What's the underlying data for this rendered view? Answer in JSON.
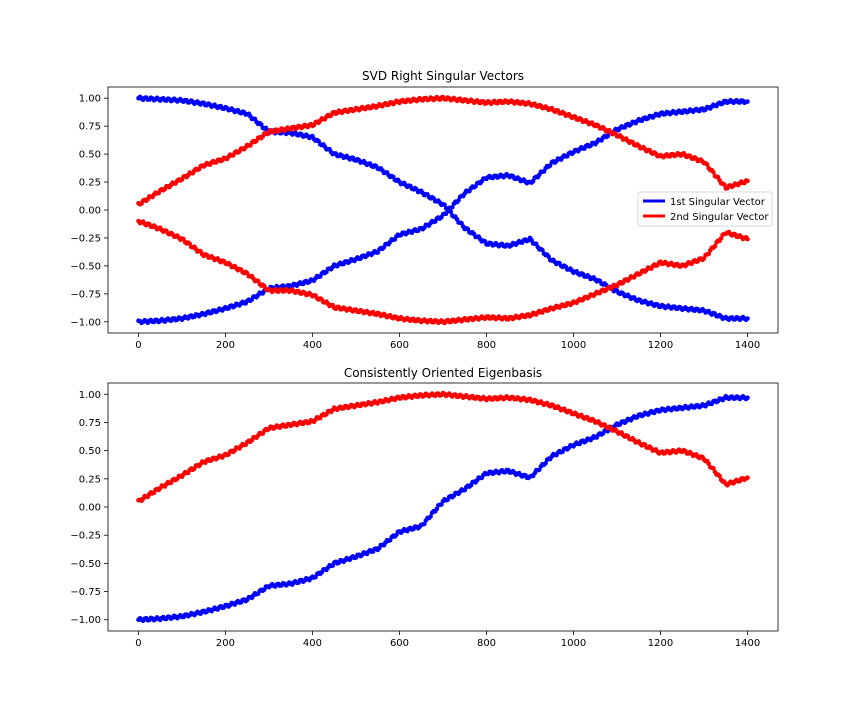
{
  "colors": {
    "series1": "#0000ff",
    "series2": "#ff0000",
    "axes": "#000000",
    "background": "#ffffff",
    "legend_border": "#cccccc"
  },
  "chart_data": [
    {
      "type": "scatter",
      "title": "SVD Right Singular Vectors",
      "xlabel": "",
      "ylabel": "",
      "xlim": [
        -70,
        1470
      ],
      "ylim": [
        -1.1,
        1.1
      ],
      "xticks": [
        0,
        200,
        400,
        600,
        800,
        1000,
        1200,
        1400
      ],
      "yticks": [
        -1.0,
        -0.75,
        -0.5,
        -0.25,
        0.0,
        0.25,
        0.5,
        0.75,
        1.0
      ],
      "xtick_labels": [
        "0",
        "200",
        "400",
        "600",
        "800",
        "1000",
        "1200",
        "1400"
      ],
      "ytick_labels": [
        "−1.00",
        "−0.75",
        "−0.50",
        "−0.25",
        "0.00",
        "0.25",
        "0.50",
        "0.75",
        "1.00"
      ],
      "grid": false,
      "legend": {
        "placement": "center-right",
        "entries": [
          "1st Singular Vector",
          "2nd Singular Vector"
        ]
      },
      "series": [
        {
          "name": "1st Singular Vector",
          "color": "#0000ff",
          "x": [
            0,
            50,
            100,
            150,
            200,
            250,
            300,
            350,
            400,
            450,
            500,
            550,
            600,
            650,
            700,
            750,
            800,
            850,
            900,
            950,
            1000,
            1050,
            1100,
            1150,
            1200,
            1250,
            1300,
            1350,
            1400
          ],
          "y": [
            1.0,
            0.99,
            0.98,
            0.95,
            0.91,
            0.86,
            0.7,
            0.69,
            0.65,
            0.5,
            0.45,
            0.38,
            0.25,
            0.16,
            0.05,
            -0.16,
            -0.3,
            -0.32,
            -0.26,
            -0.45,
            -0.55,
            -0.62,
            -0.73,
            -0.81,
            -0.86,
            -0.88,
            -0.9,
            -0.97,
            -0.97
          ]
        },
        {
          "name": "1st Singular Vector",
          "color": "#0000ff",
          "x": [
            0,
            50,
            100,
            150,
            200,
            250,
            300,
            350,
            400,
            450,
            500,
            550,
            600,
            650,
            700,
            750,
            800,
            850,
            900,
            950,
            1000,
            1050,
            1100,
            1150,
            1200,
            1250,
            1300,
            1350,
            1400
          ],
          "y": [
            -1.0,
            -0.99,
            -0.97,
            -0.93,
            -0.88,
            -0.82,
            -0.7,
            -0.68,
            -0.63,
            -0.5,
            -0.44,
            -0.37,
            -0.22,
            -0.17,
            -0.05,
            0.15,
            0.29,
            0.31,
            0.24,
            0.42,
            0.52,
            0.6,
            0.72,
            0.8,
            0.86,
            0.88,
            0.9,
            0.97,
            0.97
          ]
        },
        {
          "name": "2nd Singular Vector",
          "color": "#ff0000",
          "x": [
            0,
            50,
            100,
            150,
            200,
            250,
            300,
            350,
            400,
            450,
            500,
            550,
            600,
            650,
            700,
            750,
            800,
            850,
            900,
            950,
            1000,
            1050,
            1100,
            1150,
            1200,
            1250,
            1300,
            1350,
            1400
          ],
          "y": [
            0.05,
            0.17,
            0.28,
            0.4,
            0.46,
            0.57,
            0.7,
            0.73,
            0.76,
            0.87,
            0.9,
            0.93,
            0.97,
            0.99,
            1.0,
            0.98,
            0.96,
            0.97,
            0.95,
            0.9,
            0.83,
            0.76,
            0.67,
            0.57,
            0.48,
            0.5,
            0.43,
            0.2,
            0.26
          ]
        },
        {
          "name": "2nd Singular Vector",
          "color": "#ff0000",
          "x": [
            0,
            50,
            100,
            150,
            200,
            250,
            300,
            350,
            400,
            450,
            500,
            550,
            600,
            650,
            700,
            750,
            800,
            850,
            900,
            950,
            1000,
            1050,
            1100,
            1150,
            1200,
            1250,
            1300,
            1350,
            1400
          ],
          "y": [
            -0.1,
            -0.17,
            -0.26,
            -0.4,
            -0.47,
            -0.57,
            -0.72,
            -0.72,
            -0.76,
            -0.87,
            -0.9,
            -0.93,
            -0.97,
            -0.99,
            -1.0,
            -0.98,
            -0.96,
            -0.97,
            -0.94,
            -0.88,
            -0.83,
            -0.75,
            -0.67,
            -0.57,
            -0.47,
            -0.5,
            -0.43,
            -0.2,
            -0.26
          ]
        }
      ]
    },
    {
      "type": "scatter",
      "title": "Consistently Oriented Eigenbasis",
      "xlabel": "",
      "ylabel": "",
      "xlim": [
        -70,
        1470
      ],
      "ylim": [
        -1.1,
        1.1
      ],
      "xticks": [
        0,
        200,
        400,
        600,
        800,
        1000,
        1200,
        1400
      ],
      "yticks": [
        -1.0,
        -0.75,
        -0.5,
        -0.25,
        0.0,
        0.25,
        0.5,
        0.75,
        1.0
      ],
      "xtick_labels": [
        "0",
        "200",
        "400",
        "600",
        "800",
        "1000",
        "1200",
        "1400"
      ],
      "ytick_labels": [
        "−1.00",
        "−0.75",
        "−0.50",
        "−0.25",
        "0.00",
        "0.25",
        "0.50",
        "0.75",
        "1.00"
      ],
      "grid": false,
      "series": [
        {
          "color": "#0000ff",
          "x": [
            0,
            50,
            100,
            150,
            200,
            250,
            300,
            350,
            400,
            450,
            500,
            550,
            600,
            650,
            700,
            750,
            800,
            850,
            900,
            950,
            1000,
            1050,
            1100,
            1150,
            1200,
            1250,
            1300,
            1350,
            1400
          ],
          "y": [
            -1.0,
            -0.99,
            -0.97,
            -0.93,
            -0.88,
            -0.82,
            -0.7,
            -0.68,
            -0.63,
            -0.5,
            -0.44,
            -0.37,
            -0.22,
            -0.17,
            0.05,
            0.16,
            0.3,
            0.32,
            0.26,
            0.45,
            0.55,
            0.62,
            0.73,
            0.81,
            0.86,
            0.88,
            0.9,
            0.97,
            0.97
          ]
        },
        {
          "color": "#ff0000",
          "x": [
            0,
            50,
            100,
            150,
            200,
            250,
            300,
            350,
            400,
            450,
            500,
            550,
            600,
            650,
            700,
            750,
            800,
            850,
            900,
            950,
            1000,
            1050,
            1100,
            1150,
            1200,
            1250,
            1300,
            1350,
            1400
          ],
          "y": [
            0.05,
            0.17,
            0.28,
            0.4,
            0.46,
            0.57,
            0.7,
            0.73,
            0.76,
            0.87,
            0.9,
            0.93,
            0.97,
            0.99,
            1.0,
            0.98,
            0.96,
            0.97,
            0.95,
            0.9,
            0.83,
            0.76,
            0.67,
            0.57,
            0.48,
            0.5,
            0.43,
            0.2,
            0.26
          ]
        }
      ]
    }
  ]
}
